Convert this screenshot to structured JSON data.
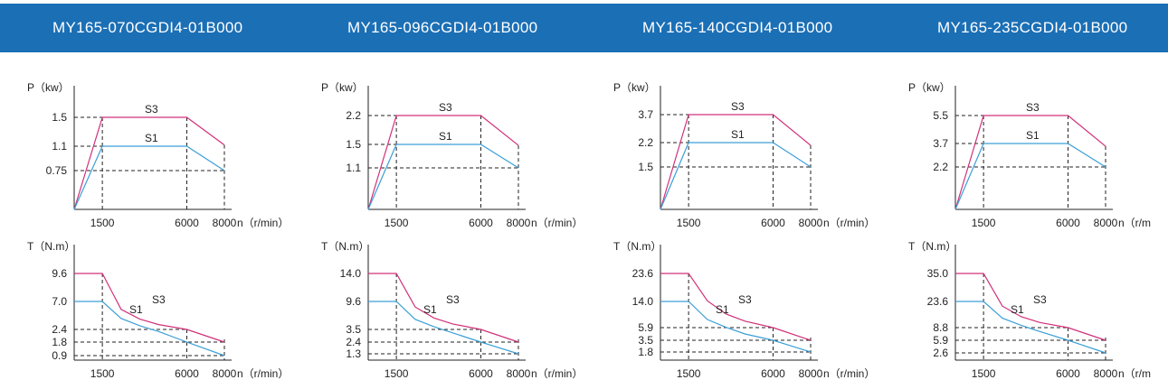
{
  "models": [
    "MY165-070CGDI4-01B000",
    "MY165-096CGDI4-01B000",
    "MY165-140CGDI4-01B000",
    "MY165-235CGDI4-01B000"
  ],
  "colors": {
    "banner": "#1b6fb5",
    "s3": "#d0307a",
    "s1": "#3c9fd6",
    "axis": "#222222"
  },
  "chart_data": [
    {
      "type": "line",
      "model": "MY165-070CGDI4-01B000",
      "ylabel": "P（kw）",
      "xlabel": "n（r/min）",
      "x": [
        0,
        1500,
        6000,
        8000
      ],
      "xticks": [
        "1500",
        "6000",
        "8000"
      ],
      "series": [
        {
          "name": "S3",
          "values": [
            0,
            1.5,
            1.5,
            1.05
          ]
        },
        {
          "name": "S1",
          "values": [
            0,
            1.1,
            1.1,
            0.75
          ]
        }
      ],
      "ytick_labels": [
        "1.5",
        "1.1",
        "0.75"
      ]
    },
    {
      "type": "line",
      "model": "MY165-096CGDI4-01B000",
      "ylabel": "P（kw）",
      "xlabel": "n（r/min）",
      "x": [
        0,
        1500,
        6000,
        8000
      ],
      "xticks": [
        "1500",
        "6000",
        "8000"
      ],
      "series": [
        {
          "name": "S3",
          "values": [
            0,
            2.2,
            2.2,
            1.5
          ]
        },
        {
          "name": "S1",
          "values": [
            0,
            1.5,
            1.5,
            1.1
          ]
        }
      ],
      "ytick_labels": [
        "2.2",
        "1.5",
        "1.1"
      ]
    },
    {
      "type": "line",
      "model": "MY165-140CGDI4-01B000",
      "ylabel": "P（kw）",
      "xlabel": "n（r/min）",
      "x": [
        0,
        1500,
        6000,
        8000
      ],
      "xticks": [
        "1500",
        "6000",
        "8000"
      ],
      "series": [
        {
          "name": "S3",
          "values": [
            0,
            3.7,
            3.7,
            2.5
          ]
        },
        {
          "name": "S1",
          "values": [
            0,
            2.2,
            2.2,
            1.5
          ]
        }
      ],
      "ytick_labels": [
        "3.7",
        "2.2",
        "1.5"
      ]
    },
    {
      "type": "line",
      "model": "MY165-235CGDI4-01B000",
      "ylabel": "P（kw）",
      "xlabel": "n（r/m",
      "x": [
        0,
        1500,
        6000,
        8000
      ],
      "xticks": [
        "1500",
        "6000",
        "8000"
      ],
      "series": [
        {
          "name": "S3",
          "values": [
            0,
            5.5,
            5.5,
            3.7
          ]
        },
        {
          "name": "S1",
          "values": [
            0,
            3.7,
            3.7,
            2.2
          ]
        }
      ],
      "ytick_labels": [
        "5.5",
        "3.7",
        "2.2"
      ]
    },
    {
      "type": "line",
      "model": "MY165-070CGDI4-01B000",
      "ylabel": "T（N.m）",
      "xlabel": "n（r/min）",
      "x": [
        0,
        1500,
        2500,
        3500,
        4500,
        6000,
        8000
      ],
      "xticks": [
        "1500",
        "6000",
        "8000"
      ],
      "series": [
        {
          "name": "S3",
          "values": [
            9.6,
            9.6,
            5.7,
            4.1,
            3.2,
            2.4,
            1.8
          ]
        },
        {
          "name": "S1",
          "values": [
            7.0,
            7.0,
            4.2,
            3.0,
            2.3,
            1.8,
            0.9
          ]
        }
      ],
      "ytick_labels": [
        "9.6",
        "7.0",
        "2.4",
        "1.8",
        "0.9"
      ]
    },
    {
      "type": "line",
      "model": "MY165-096CGDI4-01B000",
      "ylabel": "T（N.m）",
      "xlabel": "n（r/min）",
      "x": [
        0,
        1500,
        2500,
        3500,
        4500,
        6000,
        8000
      ],
      "xticks": [
        "1500",
        "6000",
        "8000"
      ],
      "series": [
        {
          "name": "S3",
          "values": [
            14.0,
            14.0,
            8.4,
            6.0,
            4.7,
            3.5,
            2.4
          ]
        },
        {
          "name": "S1",
          "values": [
            9.6,
            9.6,
            5.7,
            4.1,
            3.2,
            2.4,
            1.3
          ]
        }
      ],
      "ytick_labels": [
        "14.0",
        "9.6",
        "3.5",
        "2.4",
        "1.3"
      ]
    },
    {
      "type": "line",
      "model": "MY165-140CGDI4-01B000",
      "ylabel": "T（N.m）",
      "xlabel": "n（r/min）",
      "x": [
        0,
        1500,
        2500,
        3500,
        4500,
        6000,
        8000
      ],
      "xticks": [
        "1500",
        "6000",
        "8000"
      ],
      "series": [
        {
          "name": "S3",
          "values": [
            23.6,
            23.6,
            14.2,
            10.1,
            7.9,
            5.9,
            3.5
          ]
        },
        {
          "name": "S1",
          "values": [
            14.0,
            14.0,
            8.4,
            6.0,
            4.7,
            3.5,
            1.8
          ]
        }
      ],
      "ytick_labels": [
        "23.6",
        "14.0",
        "5.9",
        "3.5",
        "1.8"
      ]
    },
    {
      "type": "line",
      "model": "MY165-235CGDI4-01B000",
      "ylabel": "T（N.m）",
      "xlabel": "n（r/m",
      "x": [
        0,
        1500,
        2500,
        3500,
        4500,
        6000,
        8000
      ],
      "xticks": [
        "1500",
        "6000",
        "8000"
      ],
      "series": [
        {
          "name": "S3",
          "values": [
            35.0,
            35.0,
            21.0,
            15.0,
            11.7,
            8.8,
            5.9
          ]
        },
        {
          "name": "S1",
          "values": [
            23.6,
            23.6,
            14.2,
            10.1,
            7.9,
            5.9,
            2.6
          ]
        }
      ],
      "ytick_labels": [
        "35.0",
        "23.6",
        "8.8",
        "5.9",
        "2.6"
      ]
    }
  ]
}
